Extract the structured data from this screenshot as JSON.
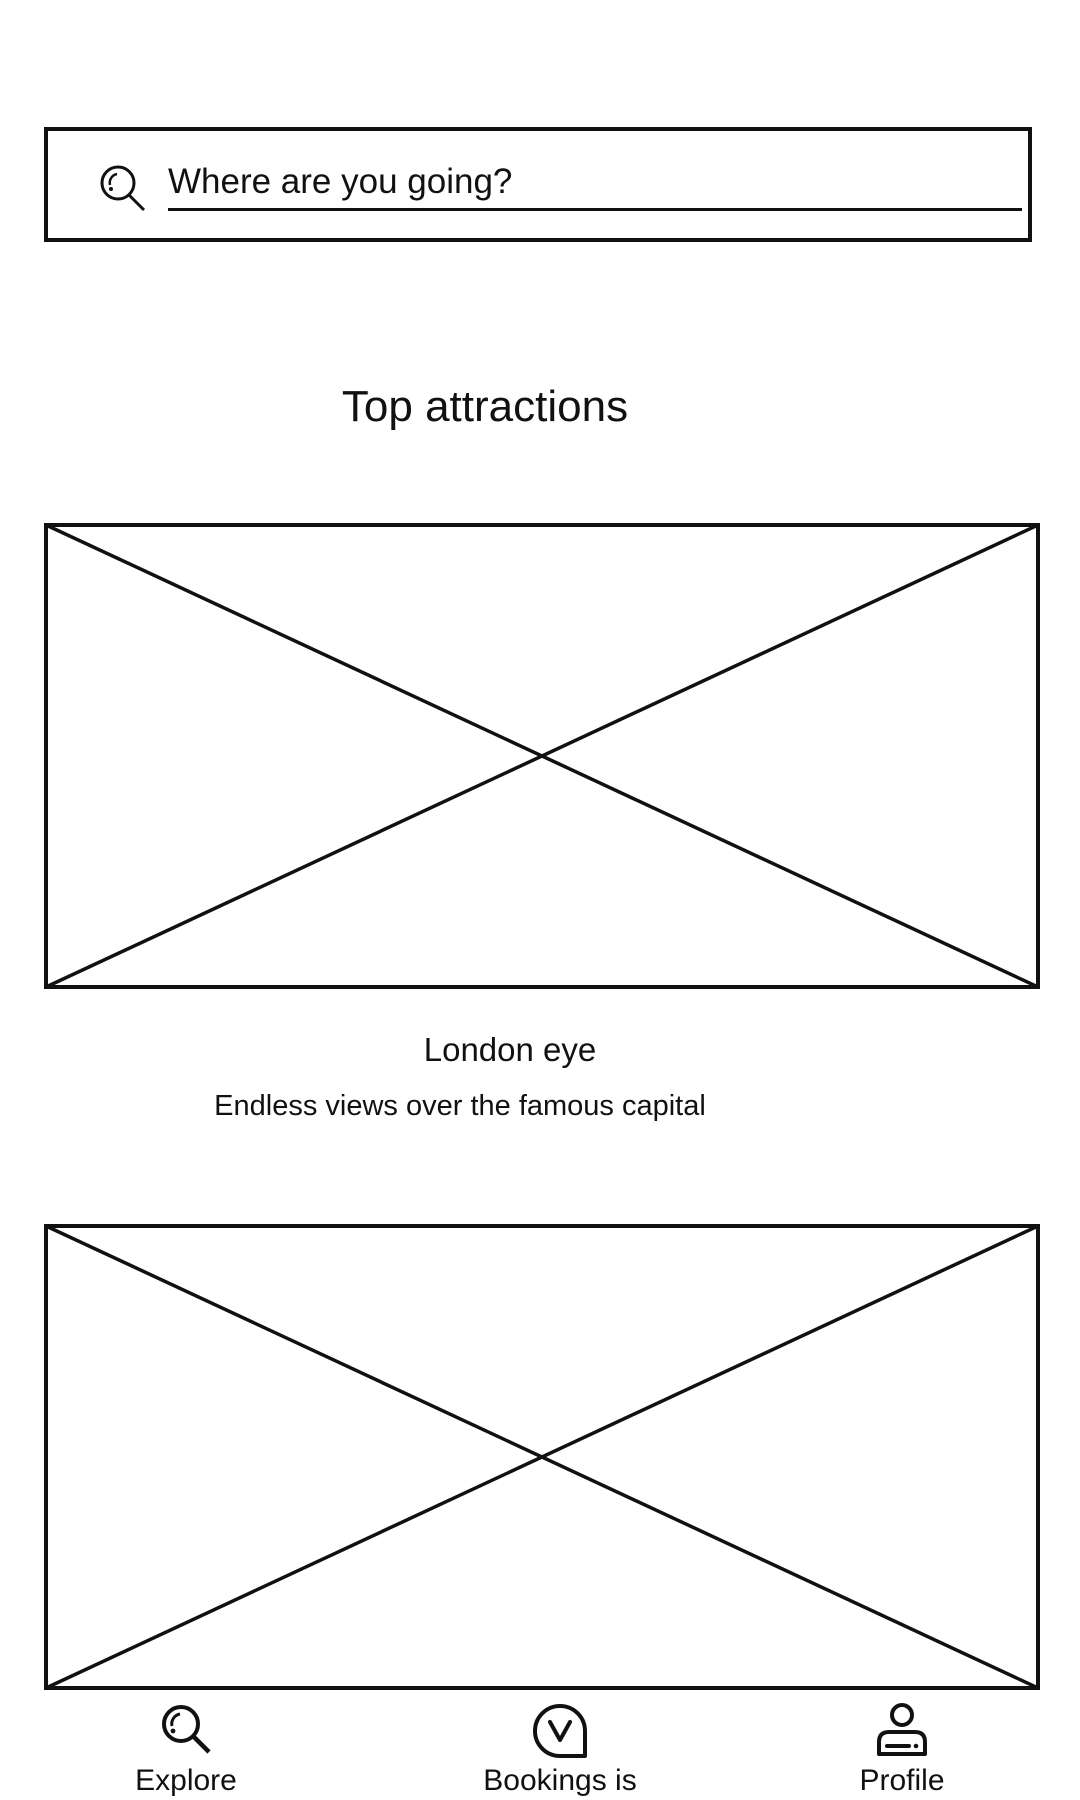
{
  "search": {
    "placeholder": "Where are you going?"
  },
  "section": {
    "title": "Top attractions"
  },
  "attractions": [
    {
      "title": "London eye",
      "subtitle": "Endless views over the famous capital"
    },
    {
      "title": "",
      "subtitle": ""
    }
  ],
  "nav": {
    "items": [
      {
        "label": "Explore",
        "icon": "search-icon"
      },
      {
        "label": "Bookings is",
        "icon": "bookings-icon"
      },
      {
        "label": "Profile",
        "icon": "profile-icon"
      }
    ]
  },
  "colors": {
    "stroke": "#111111",
    "background": "#ffffff"
  }
}
